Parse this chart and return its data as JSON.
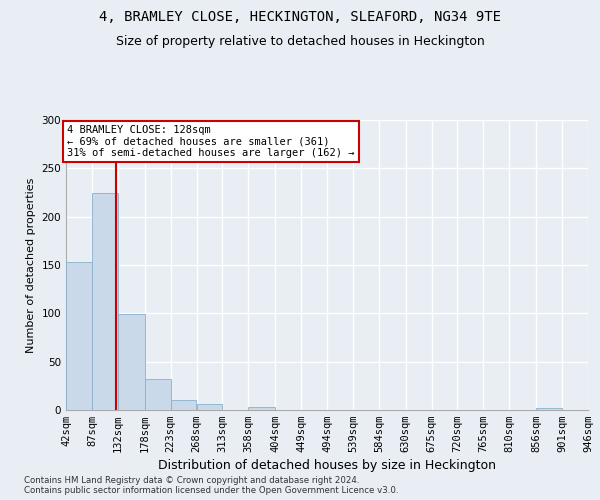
{
  "title": "4, BRAMLEY CLOSE, HECKINGTON, SLEAFORD, NG34 9TE",
  "subtitle": "Size of property relative to detached houses in Heckington",
  "xlabel": "Distribution of detached houses by size in Heckington",
  "ylabel": "Number of detached properties",
  "bar_values": [
    153,
    225,
    99,
    32,
    10,
    6,
    0,
    3,
    0,
    0,
    0,
    0,
    0,
    0,
    0,
    0,
    0,
    0,
    2,
    0
  ],
  "bin_edges": [
    42,
    87,
    132,
    178,
    223,
    268,
    313,
    358,
    404,
    449,
    494,
    539,
    584,
    630,
    675,
    720,
    765,
    810,
    856,
    901,
    946
  ],
  "bin_labels": [
    "42sqm",
    "87sqm",
    "132sqm",
    "178sqm",
    "223sqm",
    "268sqm",
    "313sqm",
    "358sqm",
    "404sqm",
    "449sqm",
    "494sqm",
    "539sqm",
    "584sqm",
    "630sqm",
    "675sqm",
    "720sqm",
    "765sqm",
    "810sqm",
    "856sqm",
    "901sqm",
    "946sqm"
  ],
  "bar_color": "#c9d9ea",
  "bar_edge_color": "#8ab0cc",
  "property_line_x": 128,
  "annotation_line1": "4 BRAMLEY CLOSE: 128sqm",
  "annotation_line2": "← 69% of detached houses are smaller (361)",
  "annotation_line3": "31% of semi-detached houses are larger (162) →",
  "annotation_box_color": "#ffffff",
  "annotation_box_edge_color": "#cc0000",
  "property_line_color": "#cc0000",
  "ylim": [
    0,
    300
  ],
  "yticks": [
    0,
    50,
    100,
    150,
    200,
    250,
    300
  ],
  "background_color": "#e8eef4",
  "axes_background_color": "#e8eef4",
  "grid_color": "#ffffff",
  "title_fontsize": 10,
  "subtitle_fontsize": 9,
  "xlabel_fontsize": 9,
  "ylabel_fontsize": 8,
  "tick_fontsize": 7.5,
  "footer_text": "Contains HM Land Registry data © Crown copyright and database right 2024.\nContains public sector information licensed under the Open Government Licence v3.0."
}
